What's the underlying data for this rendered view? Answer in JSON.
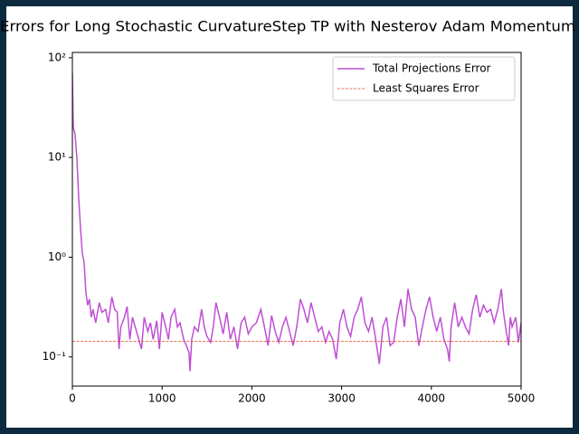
{
  "chart_data": {
    "type": "line",
    "title": "Errors for Long Stochastic CurvatureStep TP with Nesterov Adam Momentum",
    "xlim": [
      0,
      5000
    ],
    "xticks": [
      0,
      1000,
      2000,
      3000,
      4000,
      5000
    ],
    "ylim": [
      0.051,
      113
    ],
    "yscale": "log",
    "yticks": [
      {
        "value": 0.1,
        "label": "10⁻¹"
      },
      {
        "value": 1,
        "label": "10⁰"
      },
      {
        "value": 10,
        "label": "10¹"
      },
      {
        "value": 100,
        "label": "10²"
      }
    ],
    "legend": "upper right",
    "series": [
      {
        "name": "Total Projections Error",
        "color": "#bf4fd4",
        "style": "solid",
        "x": [
          0,
          10,
          30,
          50,
          70,
          90,
          110,
          130,
          150,
          170,
          190,
          210,
          230,
          260,
          300,
          330,
          370,
          400,
          440,
          470,
          500,
          520,
          540,
          580,
          610,
          640,
          670,
          700,
          740,
          770,
          800,
          840,
          870,
          900,
          940,
          970,
          1000,
          1040,
          1070,
          1100,
          1140,
          1170,
          1200,
          1240,
          1270,
          1300,
          1310,
          1330,
          1360,
          1400,
          1440,
          1470,
          1500,
          1540,
          1570,
          1600,
          1640,
          1680,
          1720,
          1760,
          1800,
          1840,
          1880,
          1920,
          1960,
          2000,
          2050,
          2100,
          2140,
          2180,
          2220,
          2260,
          2300,
          2340,
          2380,
          2420,
          2460,
          2500,
          2540,
          2580,
          2620,
          2660,
          2700,
          2740,
          2780,
          2820,
          2860,
          2900,
          2940,
          2980,
          3020,
          3060,
          3100,
          3140,
          3180,
          3220,
          3260,
          3300,
          3340,
          3380,
          3420,
          3460,
          3500,
          3540,
          3580,
          3620,
          3660,
          3700,
          3740,
          3780,
          3820,
          3860,
          3900,
          3940,
          3980,
          4020,
          4060,
          4100,
          4140,
          4180,
          4200,
          4220,
          4260,
          4300,
          4340,
          4380,
          4420,
          4460,
          4500,
          4540,
          4580,
          4620,
          4660,
          4700,
          4740,
          4780,
          4800,
          4820,
          4860,
          4880,
          4900,
          4940,
          4970,
          5000
        ],
        "values": [
          70,
          20,
          17,
          10,
          4,
          2,
          1.1,
          0.9,
          0.45,
          0.33,
          0.38,
          0.25,
          0.3,
          0.22,
          0.35,
          0.28,
          0.3,
          0.22,
          0.4,
          0.3,
          0.28,
          0.12,
          0.2,
          0.25,
          0.32,
          0.15,
          0.25,
          0.2,
          0.15,
          0.12,
          0.25,
          0.18,
          0.22,
          0.15,
          0.23,
          0.12,
          0.28,
          0.2,
          0.15,
          0.25,
          0.3,
          0.2,
          0.22,
          0.15,
          0.13,
          0.11,
          0.072,
          0.15,
          0.2,
          0.18,
          0.3,
          0.2,
          0.16,
          0.14,
          0.2,
          0.35,
          0.25,
          0.17,
          0.28,
          0.15,
          0.2,
          0.12,
          0.22,
          0.25,
          0.17,
          0.2,
          0.22,
          0.3,
          0.2,
          0.13,
          0.26,
          0.18,
          0.14,
          0.2,
          0.25,
          0.18,
          0.13,
          0.2,
          0.38,
          0.3,
          0.22,
          0.35,
          0.25,
          0.18,
          0.2,
          0.14,
          0.18,
          0.15,
          0.095,
          0.22,
          0.3,
          0.2,
          0.16,
          0.25,
          0.3,
          0.4,
          0.22,
          0.18,
          0.25,
          0.15,
          0.085,
          0.2,
          0.25,
          0.13,
          0.14,
          0.25,
          0.38,
          0.2,
          0.48,
          0.3,
          0.25,
          0.13,
          0.2,
          0.3,
          0.4,
          0.25,
          0.18,
          0.25,
          0.15,
          0.12,
          0.09,
          0.2,
          0.35,
          0.2,
          0.25,
          0.2,
          0.17,
          0.3,
          0.42,
          0.25,
          0.33,
          0.28,
          0.3,
          0.22,
          0.3,
          0.48,
          0.3,
          0.22,
          0.13,
          0.25,
          0.2,
          0.25,
          0.14,
          0.22
        ]
      },
      {
        "name": "Least Squares Error",
        "color": "#e8412c",
        "style": "dashed",
        "x": [
          0,
          5000
        ],
        "values": [
          0.143,
          0.143
        ]
      }
    ]
  }
}
